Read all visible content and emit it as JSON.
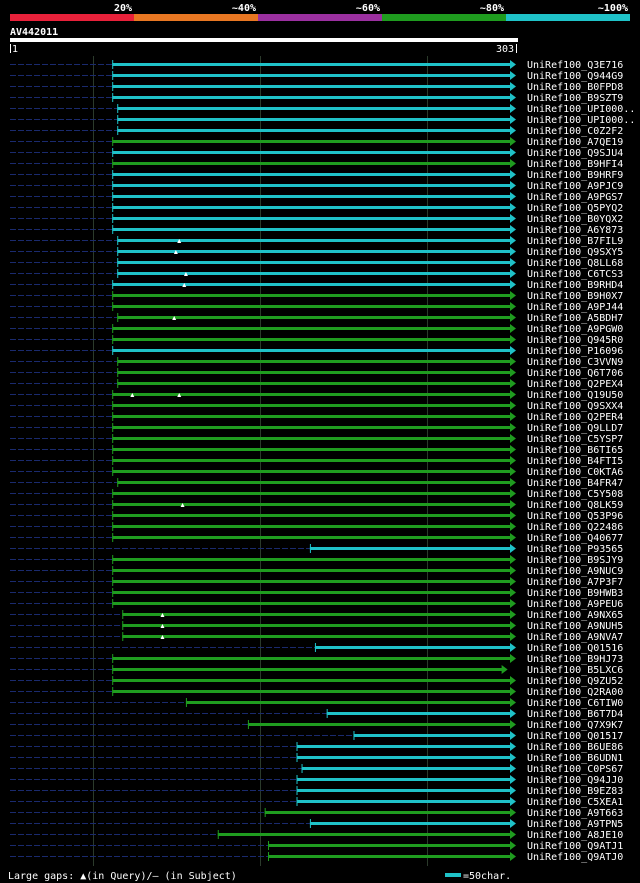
{
  "chart_data": {
    "type": "alignment-overview",
    "query_id": "AV442011",
    "query_start": "1",
    "query_end": "303",
    "query_length": 303,
    "identity_legend": [
      {
        "label": "20%",
        "color": "#e8213a"
      },
      {
        "label": "~40%",
        "color": "#e87722"
      },
      {
        "label": "~60%",
        "color": "#9b30a0"
      },
      {
        "label": "~80%",
        "color": "#1f9c1f"
      },
      {
        "label": "~100%",
        "color": "#1fc2c8"
      }
    ],
    "footer": {
      "gaps_text": "Large gaps: ▲(in Query)/– (in Subject)",
      "scale_text": "=50char."
    },
    "hits": [
      {
        "name": "UniRef100_Q3E716",
        "start": 62,
        "end": 303,
        "color": "#1fc2c8",
        "ins": []
      },
      {
        "name": "UniRef100_Q944G9",
        "start": 62,
        "end": 303,
        "color": "#1fc2c8",
        "ins": []
      },
      {
        "name": "UniRef100_B0FPD8",
        "start": 62,
        "end": 303,
        "color": "#1fc2c8",
        "ins": []
      },
      {
        "name": "UniRef100_B9SZT9",
        "start": 62,
        "end": 303,
        "color": "#1fc2c8",
        "ins": []
      },
      {
        "name": "UniRef100_UPI000..",
        "start": 65,
        "end": 303,
        "color": "#1fc2c8",
        "ins": []
      },
      {
        "name": "UniRef100_UPI000..",
        "start": 65,
        "end": 303,
        "color": "#1fc2c8",
        "ins": []
      },
      {
        "name": "UniRef100_C0Z2F2",
        "start": 65,
        "end": 303,
        "color": "#1fc2c8",
        "ins": []
      },
      {
        "name": "UniRef100_A7QE19",
        "start": 62,
        "end": 303,
        "color": "#1f9c1f",
        "ins": []
      },
      {
        "name": "UniRef100_Q9SJU4",
        "start": 62,
        "end": 303,
        "color": "#1fc2c8",
        "ins": []
      },
      {
        "name": "UniRef100_B9HFI4",
        "start": 62,
        "end": 303,
        "color": "#1f9c1f",
        "ins": []
      },
      {
        "name": "UniRef100_B9HRF9",
        "start": 62,
        "end": 303,
        "color": "#1fc2c8",
        "ins": []
      },
      {
        "name": "UniRef100_A9PJC9",
        "start": 62,
        "end": 303,
        "color": "#1fc2c8",
        "ins": []
      },
      {
        "name": "UniRef100_A9PGS7",
        "start": 62,
        "end": 303,
        "color": "#1fc2c8",
        "ins": []
      },
      {
        "name": "UniRef100_Q5PYQ2",
        "start": 62,
        "end": 303,
        "color": "#1fc2c8",
        "ins": []
      },
      {
        "name": "UniRef100_B0YQX2",
        "start": 62,
        "end": 303,
        "color": "#1fc2c8",
        "ins": []
      },
      {
        "name": "UniRef100_A6Y873",
        "start": 62,
        "end": 303,
        "color": "#1fc2c8",
        "ins": []
      },
      {
        "name": "UniRef100_B7FIL9",
        "start": 65,
        "end": 303,
        "color": "#1fc2c8",
        "ins": [
          102
        ]
      },
      {
        "name": "UniRef100_Q9SXY5",
        "start": 65,
        "end": 303,
        "color": "#1fc2c8",
        "ins": [
          100
        ]
      },
      {
        "name": "UniRef100_Q8LL68",
        "start": 65,
        "end": 303,
        "color": "#1fc2c8",
        "ins": []
      },
      {
        "name": "UniRef100_C6TCS3",
        "start": 65,
        "end": 303,
        "color": "#1fc2c8",
        "ins": [
          106
        ]
      },
      {
        "name": "UniRef100_B9RHD4",
        "start": 62,
        "end": 303,
        "color": "#1fc2c8",
        "ins": [
          105
        ]
      },
      {
        "name": "UniRef100_B9H0X7",
        "start": 62,
        "end": 303,
        "color": "#1f9c1f",
        "ins": []
      },
      {
        "name": "UniRef100_A9PJ44",
        "start": 62,
        "end": 303,
        "color": "#1f9c1f",
        "ins": []
      },
      {
        "name": "UniRef100_A5BDH7",
        "start": 65,
        "end": 303,
        "color": "#1f9c1f",
        "ins": [
          99
        ]
      },
      {
        "name": "UniRef100_A9PGW0",
        "start": 62,
        "end": 303,
        "color": "#1f9c1f",
        "ins": []
      },
      {
        "name": "UniRef100_Q945R0",
        "start": 62,
        "end": 303,
        "color": "#1f9c1f",
        "ins": []
      },
      {
        "name": "UniRef100_P16096",
        "start": 62,
        "end": 303,
        "color": "#1fc2c8",
        "ins": []
      },
      {
        "name": "UniRef100_C3VVN9",
        "start": 65,
        "end": 303,
        "color": "#1f9c1f",
        "ins": []
      },
      {
        "name": "UniRef100_Q6T706",
        "start": 65,
        "end": 303,
        "color": "#1f9c1f",
        "ins": []
      },
      {
        "name": "UniRef100_Q2PEX4",
        "start": 65,
        "end": 303,
        "color": "#1f9c1f",
        "ins": []
      },
      {
        "name": "UniRef100_Q19U50",
        "start": 62,
        "end": 303,
        "color": "#1f9c1f",
        "ins": [
          74,
          102
        ]
      },
      {
        "name": "UniRef100_Q9SXX4",
        "start": 62,
        "end": 303,
        "color": "#1f9c1f",
        "ins": []
      },
      {
        "name": "UniRef100_Q2PER4",
        "start": 62,
        "end": 303,
        "color": "#1f9c1f",
        "ins": []
      },
      {
        "name": "UniRef100_Q9LLD7",
        "start": 62,
        "end": 303,
        "color": "#1f9c1f",
        "ins": []
      },
      {
        "name": "UniRef100_C5YSP7",
        "start": 62,
        "end": 303,
        "color": "#1f9c1f",
        "ins": []
      },
      {
        "name": "UniRef100_B6TI65",
        "start": 62,
        "end": 303,
        "color": "#1f9c1f",
        "ins": []
      },
      {
        "name": "UniRef100_B4FTI5",
        "start": 62,
        "end": 303,
        "color": "#1f9c1f",
        "ins": []
      },
      {
        "name": "UniRef100_C0KTA6",
        "start": 62,
        "end": 303,
        "color": "#1f9c1f",
        "ins": []
      },
      {
        "name": "UniRef100_B4FR47",
        "start": 65,
        "end": 303,
        "color": "#1f9c1f",
        "ins": []
      },
      {
        "name": "UniRef100_C5Y508",
        "start": 62,
        "end": 303,
        "color": "#1f9c1f",
        "ins": []
      },
      {
        "name": "UniRef100_Q8LK59",
        "start": 62,
        "end": 303,
        "color": "#1f9c1f",
        "ins": [
          104
        ]
      },
      {
        "name": "UniRef100_Q53P96",
        "start": 62,
        "end": 303,
        "color": "#1f9c1f",
        "ins": []
      },
      {
        "name": "UniRef100_Q22486",
        "start": 62,
        "end": 303,
        "color": "#1f9c1f",
        "ins": []
      },
      {
        "name": "UniRef100_Q40677",
        "start": 62,
        "end": 303,
        "color": "#1f9c1f",
        "ins": []
      },
      {
        "name": "UniRef100_P93565",
        "start": 180,
        "end": 303,
        "color": "#1fc2c8",
        "ins": []
      },
      {
        "name": "UniRef100_B9SJY9",
        "start": 62,
        "end": 303,
        "color": "#1f9c1f",
        "ins": []
      },
      {
        "name": "UniRef100_A9NUC9",
        "start": 62,
        "end": 303,
        "color": "#1f9c1f",
        "ins": []
      },
      {
        "name": "UniRef100_A7P3F7",
        "start": 62,
        "end": 303,
        "color": "#1f9c1f",
        "ins": []
      },
      {
        "name": "UniRef100_B9HWB3",
        "start": 62,
        "end": 303,
        "color": "#1f9c1f",
        "ins": []
      },
      {
        "name": "UniRef100_A9PEU6",
        "start": 62,
        "end": 303,
        "color": "#1f9c1f",
        "ins": []
      },
      {
        "name": "UniRef100_A9NX65",
        "start": 68,
        "end": 303,
        "color": "#1f9c1f",
        "ins": [
          92
        ]
      },
      {
        "name": "UniRef100_A9NUH5",
        "start": 68,
        "end": 303,
        "color": "#1f9c1f",
        "ins": [
          92
        ]
      },
      {
        "name": "UniRef100_A9NVA7",
        "start": 68,
        "end": 303,
        "color": "#1f9c1f",
        "ins": [
          92
        ]
      },
      {
        "name": "UniRef100_Q01516",
        "start": 183,
        "end": 303,
        "color": "#1fc2c8",
        "ins": []
      },
      {
        "name": "UniRef100_B9HJ73",
        "start": 62,
        "end": 303,
        "color": "#1f9c1f",
        "ins": []
      },
      {
        "name": "UniRef100_B5LXC6",
        "start": 62,
        "end": 298,
        "color": "#1f9c1f",
        "ins": []
      },
      {
        "name": "UniRef100_Q9ZU52",
        "start": 62,
        "end": 303,
        "color": "#1f9c1f",
        "ins": []
      },
      {
        "name": "UniRef100_Q2RA00",
        "start": 62,
        "end": 303,
        "color": "#1f9c1f",
        "ins": []
      },
      {
        "name": "UniRef100_C6TIW0",
        "start": 106,
        "end": 303,
        "color": "#1f9c1f",
        "ins": []
      },
      {
        "name": "UniRef100_B6T7D4",
        "start": 190,
        "end": 303,
        "color": "#1fc2c8",
        "ins": []
      },
      {
        "name": "UniRef100_Q7X9K7",
        "start": 143,
        "end": 303,
        "color": "#1f9c1f",
        "ins": []
      },
      {
        "name": "UniRef100_Q01517",
        "start": 206,
        "end": 303,
        "color": "#1fc2c8",
        "ins": []
      },
      {
        "name": "UniRef100_B6UE86",
        "start": 172,
        "end": 303,
        "color": "#1fc2c8",
        "ins": []
      },
      {
        "name": "UniRef100_B6UDN1",
        "start": 172,
        "end": 303,
        "color": "#1fc2c8",
        "ins": []
      },
      {
        "name": "UniRef100_C0PS67",
        "start": 175,
        "end": 303,
        "color": "#1fc2c8",
        "ins": []
      },
      {
        "name": "UniRef100_Q94JJ0",
        "start": 172,
        "end": 303,
        "color": "#1fc2c8",
        "ins": []
      },
      {
        "name": "UniRef100_B9EZ83",
        "start": 172,
        "end": 303,
        "color": "#1fc2c8",
        "ins": []
      },
      {
        "name": "UniRef100_C5XEA1",
        "start": 172,
        "end": 303,
        "color": "#1fc2c8",
        "ins": []
      },
      {
        "name": "UniRef100_A9T663",
        "start": 153,
        "end": 303,
        "color": "#1f9c1f",
        "ins": []
      },
      {
        "name": "UniRef100_A9TPN5",
        "start": 180,
        "end": 303,
        "color": "#1fc2c8",
        "ins": []
      },
      {
        "name": "UniRef100_A8JE10",
        "start": 125,
        "end": 303,
        "color": "#1f9c1f",
        "ins": []
      },
      {
        "name": "UniRef100_Q9ATJ1",
        "start": 155,
        "end": 303,
        "color": "#1f9c1f",
        "ins": []
      },
      {
        "name": "UniRef100_Q9ATJ0",
        "start": 155,
        "end": 303,
        "color": "#1f9c1f",
        "ins": []
      }
    ]
  }
}
